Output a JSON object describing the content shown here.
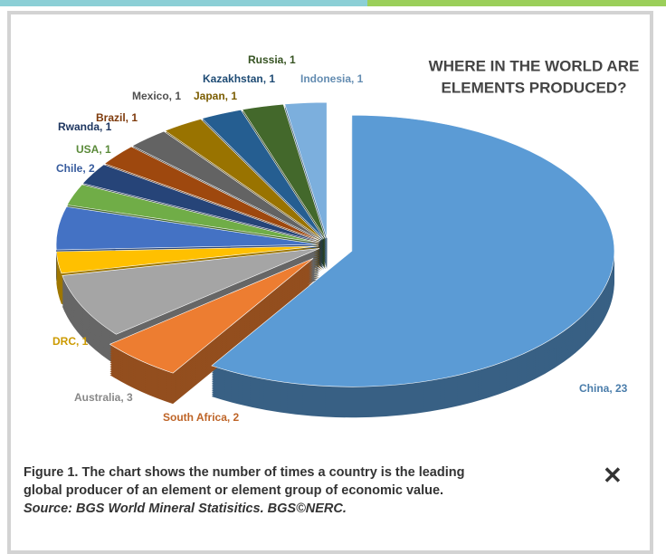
{
  "chart_data": {
    "type": "pie",
    "title": [
      "WHERE IN THE WORLD ARE",
      "ELEMENTS PRODUCED?"
    ],
    "values": [
      23,
      2,
      3,
      1,
      2,
      1,
      1,
      1,
      1,
      1,
      1,
      1,
      1
    ],
    "value_labels": [
      "China, 23",
      "South Africa, 2",
      "Australia, 3",
      "DRC, 1",
      "Chile, 2",
      "USA, 1",
      "Rwanda, 1",
      "Brazil, 1",
      "Mexico, 1",
      "Japan, 1",
      "Kazakhstan, 1",
      "Russia, 1",
      "Indonesia, 1"
    ],
    "colors": [
      "#5b9bd5",
      "#ed7d31",
      "#a5a5a5",
      "#ffc000",
      "#4472c4",
      "#70ad47",
      "#264478",
      "#9e480e",
      "#636363",
      "#997300",
      "#255e91",
      "#43682b",
      "#7cafdd"
    ]
  },
  "caption": {
    "text": "Figure 1. The chart shows the number of times a country is the leading global producer of an element or element group of economic value.",
    "source": "Source: BGS World Mineral Statisitics. BGS©NERC."
  },
  "close": "✕"
}
